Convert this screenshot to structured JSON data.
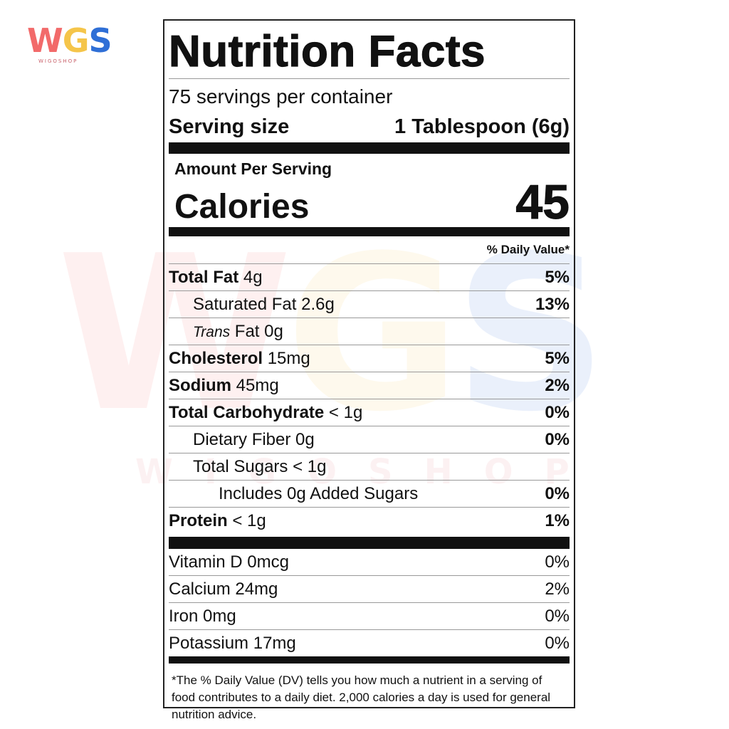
{
  "logo": {
    "letters": [
      "W",
      "G",
      "S"
    ],
    "letter_colors": [
      "#f26a6a",
      "#f5c54a",
      "#2f6fd6"
    ],
    "subtitle": "WIGOSHOP"
  },
  "watermark": {
    "letters": [
      "W",
      "G",
      "S"
    ],
    "letter_colors": [
      "rgba(242,106,106,0.10)",
      "rgba(245,197,74,0.10)",
      "rgba(47,111,214,0.10)"
    ],
    "subtitle": "WIGOSHOP"
  },
  "label": {
    "title": "Nutrition Facts",
    "servings_per_container": "75 servings per container",
    "serving_size_label": "Serving size",
    "serving_size_value": "1 Tablespoon (6g)",
    "amount_per_serving": "Amount Per Serving",
    "calories_label": "Calories",
    "calories_value": "45",
    "daily_value_header": "% Daily Value*",
    "nutrients": [
      {
        "name": "Total Fat",
        "amount": "4g",
        "dv": "5%"
      },
      {
        "name": "Saturated Fat",
        "amount": "2.6g",
        "dv": "13%"
      },
      {
        "name_italic": "Trans",
        "name": "Fat",
        "amount": "0g",
        "dv": ""
      },
      {
        "name": "Cholesterol",
        "amount": "15mg",
        "dv": "5%"
      },
      {
        "name": "Sodium",
        "amount": "45mg",
        "dv": "2%"
      },
      {
        "name": "Total Carbohydrate",
        "amount": "< 1g",
        "dv": "0%"
      },
      {
        "name": "Dietary Fiber",
        "amount": "0g",
        "dv": "0%"
      },
      {
        "name": "Total Sugars",
        "amount": "< 1g",
        "dv": ""
      },
      {
        "name": "Includes 0g Added Sugars",
        "amount": "",
        "dv": "0%"
      },
      {
        "name": "Protein",
        "amount": "< 1g",
        "dv": "1%"
      }
    ],
    "vitamins": [
      {
        "name": "Vitamin D",
        "amount": "0mcg",
        "dv": "0%"
      },
      {
        "name": "Calcium",
        "amount": "24mg",
        "dv": "2%"
      },
      {
        "name": "Iron",
        "amount": "0mg",
        "dv": "0%"
      },
      {
        "name": "Potassium",
        "amount": "17mg",
        "dv": "0%"
      }
    ],
    "footnote": "*The % Daily Value (DV) tells you how much a nutrient in a serving of food contributes to a daily diet. 2,000 calories a day is used for general nutrition advice."
  }
}
